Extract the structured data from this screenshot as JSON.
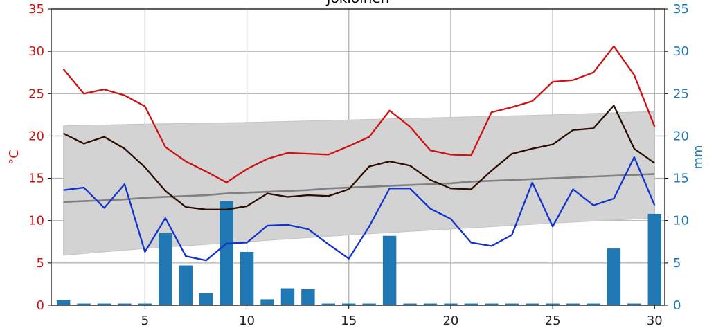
{
  "chart_data": {
    "type": "line",
    "title": "Jokioinen",
    "ylabel_left": "°C",
    "ylabel_right": "mm",
    "xlim": [
      0.4,
      30.5
    ],
    "ylim": [
      0,
      35
    ],
    "x_ticks": [
      5,
      10,
      15,
      20,
      25,
      30
    ],
    "y_ticks": [
      0,
      5,
      10,
      15,
      20,
      25,
      30,
      35
    ],
    "grid": true,
    "x": [
      1,
      2,
      3,
      4,
      5,
      6,
      7,
      8,
      9,
      10,
      11,
      12,
      13,
      14,
      15,
      16,
      17,
      18,
      19,
      20,
      21,
      22,
      23,
      24,
      25,
      26,
      27,
      28,
      29,
      30
    ],
    "band": {
      "x": [
        1,
        5,
        10,
        15,
        20,
        25,
        30
      ],
      "upper": [
        21.2,
        21.4,
        21.6,
        21.9,
        22.2,
        22.5,
        22.9
      ],
      "lower": [
        5.9,
        6.7,
        7.5,
        8.3,
        9.0,
        9.7,
        10.3
      ]
    },
    "series": [
      {
        "name": "",
        "color": "#cc1111",
        "values": [
          27.9,
          25.0,
          25.5,
          24.8,
          23.5,
          18.7,
          17.0,
          15.8,
          14.5,
          16.1,
          17.3,
          18.0,
          17.9,
          17.8,
          18.8,
          19.9,
          23.0,
          21.1,
          18.3,
          17.8,
          17.7,
          22.8,
          23.4,
          24.1,
          26.4,
          26.6,
          27.5,
          30.6,
          27.2,
          21.1
        ]
      },
      {
        "name": "",
        "color": "#2b0d00",
        "values": [
          20.3,
          19.1,
          19.9,
          18.5,
          16.3,
          13.5,
          11.6,
          11.3,
          11.3,
          11.7,
          13.2,
          12.8,
          13.0,
          12.9,
          13.7,
          16.4,
          17.0,
          16.5,
          14.8,
          13.8,
          13.7,
          15.9,
          17.9,
          18.5,
          19.0,
          20.7,
          20.9,
          23.6,
          18.5,
          16.8
        ]
      },
      {
        "name": "",
        "color": "#1133cc",
        "values": [
          13.6,
          13.9,
          11.5,
          14.3,
          6.3,
          10.3,
          5.8,
          5.3,
          7.3,
          7.4,
          9.4,
          9.5,
          9.0,
          7.2,
          5.5,
          9.3,
          13.8,
          13.8,
          11.4,
          10.2,
          7.4,
          7.0,
          8.3,
          14.5,
          9.3,
          13.7,
          11.8,
          12.6,
          17.5,
          11.8
        ]
      },
      {
        "name": "",
        "color": "#808080",
        "values": [
          12.2,
          12.3,
          12.4,
          12.5,
          12.7,
          12.8,
          12.9,
          13.0,
          13.2,
          13.3,
          13.4,
          13.5,
          13.6,
          13.8,
          13.9,
          14.0,
          14.1,
          14.2,
          14.3,
          14.4,
          14.6,
          14.7,
          14.8,
          14.9,
          15.0,
          15.1,
          15.2,
          15.3,
          15.4,
          15.5
        ]
      }
    ],
    "bars": {
      "name": "",
      "color": "#1f77b4",
      "values": [
        0.6,
        0.2,
        0.2,
        0.2,
        0.2,
        8.5,
        4.7,
        1.4,
        12.3,
        6.3,
        0.7,
        2.0,
        1.9,
        0.2,
        0.2,
        0.2,
        8.2,
        0.2,
        0.2,
        0.2,
        0.2,
        0.2,
        0.2,
        0.2,
        0.2,
        0.2,
        0.2,
        6.7,
        0.2,
        10.8
      ]
    }
  }
}
